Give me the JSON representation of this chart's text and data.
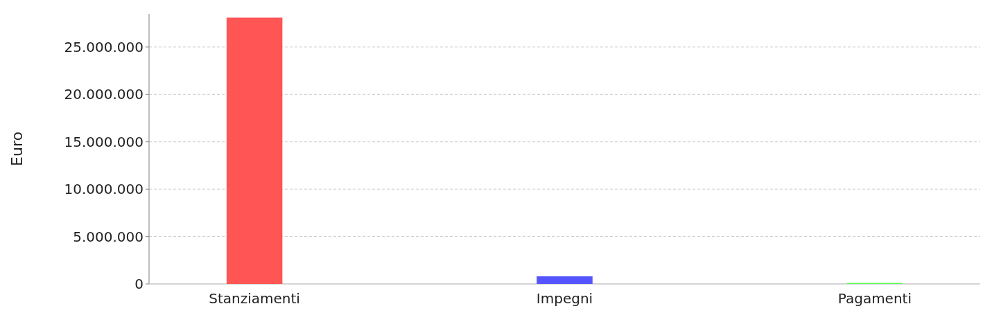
{
  "chart_data": {
    "type": "bar",
    "ylabel": "Euro",
    "categories": [
      "Stanziamenti",
      "Impegni",
      "Pagamenti"
    ],
    "values": [
      28100000,
      800000,
      100000
    ],
    "colors": [
      "#ff5555",
      "#5555ff",
      "#55ff55"
    ],
    "ylim": [
      0,
      28500000
    ],
    "yticks": [
      {
        "value": 0,
        "label": "0"
      },
      {
        "value": 5000000,
        "label": "5.000.000"
      },
      {
        "value": 10000000,
        "label": "10.000.000"
      },
      {
        "value": 15000000,
        "label": "15.000.000"
      },
      {
        "value": 20000000,
        "label": "20.000.000"
      },
      {
        "value": 25000000,
        "label": "25.000.000"
      }
    ],
    "grid": "y"
  }
}
